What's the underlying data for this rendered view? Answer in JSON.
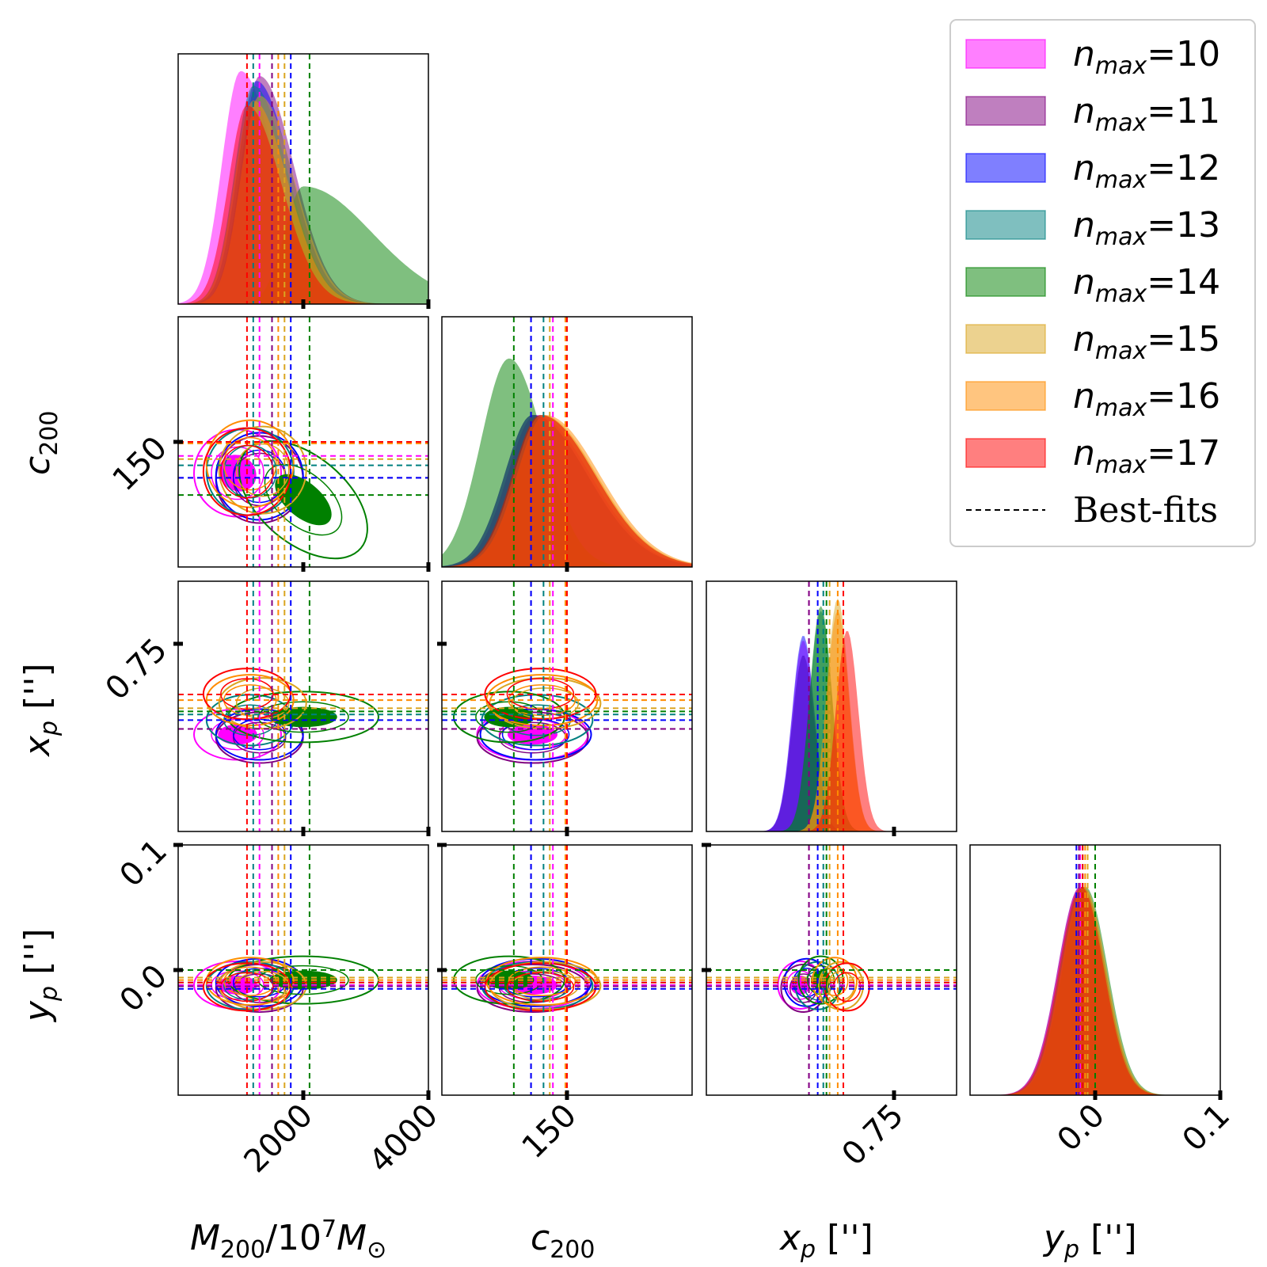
{
  "chart_data": {
    "type": "corner",
    "parameters": [
      {
        "key": "M200",
        "label": "M200/10^7M⊙",
        "range": [
          0,
          4000
        ],
        "ticks": [
          2000,
          4000
        ],
        "tick_labels": [
          "2000",
          "4000"
        ]
      },
      {
        "key": "c200",
        "label": "c200",
        "range": [
          70,
          230
        ],
        "ticks": [
          150
        ],
        "tick_labels": [
          "150"
        ]
      },
      {
        "key": "xp",
        "label": "xp ['']",
        "range": [
          0.45,
          0.85
        ],
        "ticks": [
          0.75
        ],
        "tick_labels": [
          "0.75"
        ]
      },
      {
        "key": "yp",
        "label": "yp ['']",
        "range": [
          -0.1,
          0.1
        ],
        "ticks": [
          0.0,
          0.1
        ],
        "tick_labels": [
          "0.0",
          "0.1"
        ]
      }
    ],
    "y_ticks": {
      "c200": {
        "ticks": [
          150
        ],
        "tick_labels": [
          "150"
        ]
      },
      "xp": {
        "ticks": [
          0.75
        ],
        "tick_labels": [
          "0.75"
        ]
      },
      "yp": {
        "ticks": [
          0.1,
          0.0
        ],
        "tick_labels": [
          "0.1",
          "0.0"
        ]
      }
    },
    "series": [
      {
        "name": "nmax=10",
        "color": "#ff00ff",
        "best_fit": {
          "M200": 1300,
          "c200": 141,
          "xp": 0.614,
          "yp": -0.012
        },
        "peak": {
          "M200": 1000,
          "c200": 130,
          "xp": 0.605,
          "yp": -0.012
        }
      },
      {
        "name": "nmax=11",
        "color": "#800080",
        "best_fit": {
          "M200": 1500,
          "c200": 127,
          "xp": 0.614,
          "yp": -0.013
        },
        "peak": {
          "M200": 1300,
          "c200": 128,
          "xp": 0.605,
          "yp": -0.012
        }
      },
      {
        "name": "nmax=12",
        "color": "#0000ff",
        "best_fit": {
          "M200": 1800,
          "c200": 127,
          "xp": 0.628,
          "yp": -0.015
        },
        "peak": {
          "M200": 1250,
          "c200": 128,
          "xp": 0.605,
          "yp": -0.01
        }
      },
      {
        "name": "nmax=13",
        "color": "#008080",
        "best_fit": {
          "M200": 1200,
          "c200": 135,
          "xp": 0.637,
          "yp": -0.01
        },
        "peak": {
          "M200": 1200,
          "c200": 133,
          "xp": 0.633,
          "yp": -0.01
        }
      },
      {
        "name": "nmax=14",
        "color": "#008000",
        "best_fit": {
          "M200": 2100,
          "c200": 116,
          "xp": 0.642,
          "yp": 0.0
        },
        "peak": {
          "M200": 2000,
          "c200": 113,
          "xp": 0.633,
          "yp": -0.008
        }
      },
      {
        "name": "nmax=15",
        "color": "#daa520",
        "best_fit": {
          "M200": 1700,
          "c200": 139,
          "xp": 0.647,
          "yp": -0.006
        },
        "peak": {
          "M200": 1300,
          "c200": 134,
          "xp": 0.66,
          "yp": -0.01
        }
      },
      {
        "name": "nmax=16",
        "color": "#ff8c00",
        "best_fit": {
          "M200": 1600,
          "c200": 149,
          "xp": 0.66,
          "yp": -0.008
        },
        "peak": {
          "M200": 1200,
          "c200": 136,
          "xp": 0.66,
          "yp": -0.009
        }
      },
      {
        "name": "nmax=17",
        "color": "#ff0000",
        "best_fit": {
          "M200": 1100,
          "c200": 150,
          "xp": 0.669,
          "yp": -0.01
        },
        "peak": {
          "M200": 1100,
          "c200": 133,
          "xp": 0.675,
          "yp": -0.011
        }
      }
    ],
    "legend": {
      "entries": [
        "nmax=10",
        "nmax=11",
        "nmax=12",
        "nmax=13",
        "nmax=14",
        "nmax=15",
        "nmax=16",
        "nmax=17"
      ],
      "best_fit_label": "Best-fits",
      "placement": "top-right"
    },
    "x_axis_labels": [
      "M200/10^7M⊙",
      "c200",
      "xp ['']",
      "yp ['']"
    ],
    "y_axis_labels": [
      "c200",
      "xp ['']",
      "yp ['']"
    ]
  }
}
